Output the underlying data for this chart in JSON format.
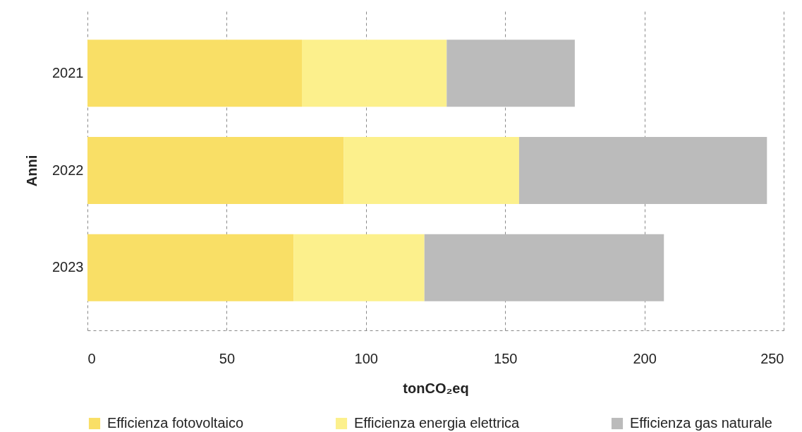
{
  "chart_data": {
    "type": "bar",
    "orientation": "horizontal",
    "stacked": true,
    "categories": [
      "2021",
      "2022",
      "2023"
    ],
    "series": [
      {
        "name": "Efficienza fotovoltaico",
        "color": "#f9df66",
        "values": [
          77,
          92,
          74
        ]
      },
      {
        "name": "Efficienza energia elettrica",
        "color": "#fcf08c",
        "values": [
          52,
          63,
          47
        ]
      },
      {
        "name": "Efficienza gas naturale",
        "color": "#bbbbbb",
        "values": [
          46,
          89,
          86
        ]
      }
    ],
    "xlabel": "tonCO₂eq",
    "ylabel": "Anni",
    "xlim": [
      0,
      250
    ],
    "xticks": [
      0,
      50,
      100,
      150,
      200,
      250
    ],
    "grid": "x",
    "legend": "bottom"
  }
}
